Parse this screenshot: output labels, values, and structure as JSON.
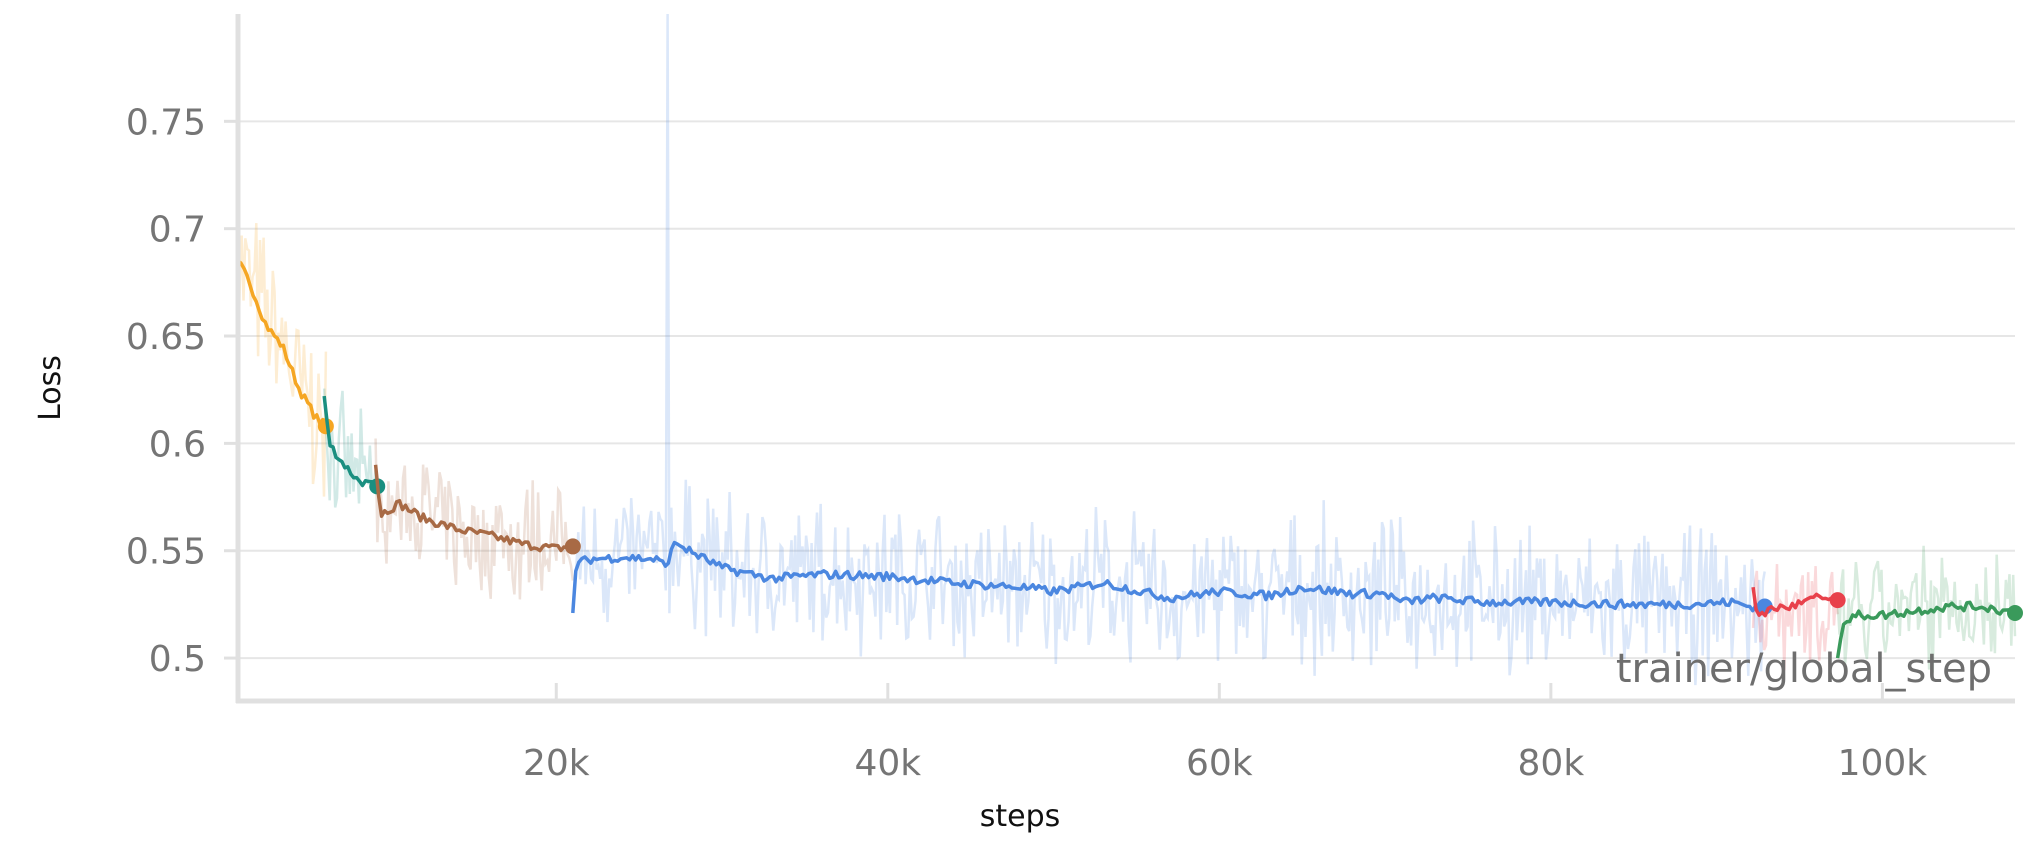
{
  "chart_data": {
    "type": "line",
    "title": "",
    "xlabel": "steps",
    "ylabel": "Loss",
    "x_axis_tag": "trainer/global_step",
    "xlim": [
      800,
      108000
    ],
    "ylim": [
      0.48,
      0.8
    ],
    "x_ticks": [
      20000,
      40000,
      60000,
      80000,
      100000
    ],
    "x_tick_labels": [
      "20k",
      "40k",
      "60k",
      "80k",
      "100k"
    ],
    "y_ticks": [
      0.5,
      0.55,
      0.6,
      0.65,
      0.7,
      0.75
    ],
    "y_tick_labels": [
      "0.5",
      "0.55",
      "0.6",
      "0.65",
      "0.7",
      "0.75"
    ],
    "grid": true,
    "legend": "none",
    "series": [
      {
        "color": "#f5a623",
        "x": [
          800,
          1500,
          2500,
          3500,
          4500,
          5500,
          6100
        ],
        "values": [
          0.685,
          0.675,
          0.655,
          0.645,
          0.625,
          0.612,
          0.608
        ],
        "end_marker": true,
        "noise": 0.035
      },
      {
        "color": "#1a8f80",
        "x": [
          6000,
          6300,
          7000,
          8000,
          9000,
          9200
        ],
        "values": [
          0.622,
          0.6,
          0.592,
          0.583,
          0.58,
          0.58
        ],
        "end_marker": true,
        "noise": 0.025
      },
      {
        "color": "#a86a45",
        "x": [
          9100,
          9400,
          10500,
          12000,
          14000,
          16000,
          18000,
          20000,
          21000
        ],
        "values": [
          0.59,
          0.567,
          0.572,
          0.565,
          0.56,
          0.557,
          0.553,
          0.551,
          0.552
        ],
        "end_marker": true,
        "noise": 0.025
      },
      {
        "color": "#4b87e0",
        "x": [
          21000,
          21200,
          22000,
          24000,
          26000,
          26600,
          27200,
          28000,
          30000,
          33000,
          36000,
          40000,
          44000,
          48000,
          50000,
          53000,
          57000,
          60000,
          63000,
          65000,
          68000,
          70000,
          71000,
          73000,
          76000,
          80000,
          84000,
          88000,
          91000,
          92000,
          92900
        ],
        "values": [
          0.521,
          0.544,
          0.546,
          0.547,
          0.546,
          0.543,
          0.554,
          0.55,
          0.542,
          0.537,
          0.539,
          0.538,
          0.535,
          0.533,
          0.531,
          0.535,
          0.528,
          0.531,
          0.529,
          0.533,
          0.53,
          0.53,
          0.526,
          0.528,
          0.526,
          0.526,
          0.525,
          0.525,
          0.526,
          0.524,
          0.524
        ],
        "end_marker": true,
        "noise": 0.03
      },
      {
        "color": "#e8414b",
        "x": [
          92200,
          92500,
          93200,
          94500,
          96000,
          97300
        ],
        "values": [
          0.533,
          0.518,
          0.523,
          0.524,
          0.528,
          0.527
        ],
        "end_marker": true,
        "noise": 0.025
      },
      {
        "color": "#3a9a5b",
        "x": [
          97300,
          97600,
          98500,
          100000,
          102000,
          104000,
          106000,
          108000
        ],
        "values": [
          0.5,
          0.516,
          0.52,
          0.52,
          0.522,
          0.524,
          0.524,
          0.521
        ],
        "end_marker": true,
        "noise": 0.025
      }
    ]
  }
}
